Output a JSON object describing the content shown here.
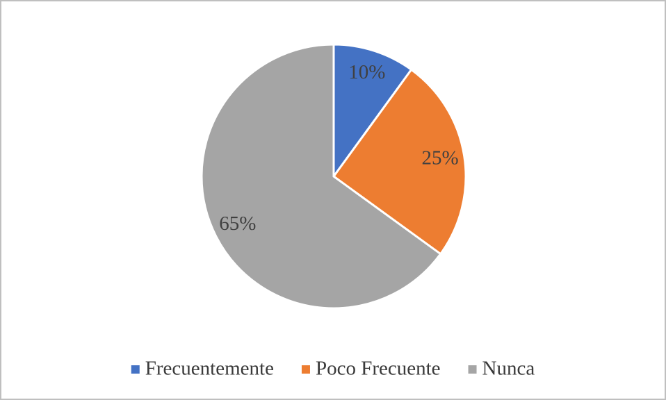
{
  "chart_data": {
    "type": "pie",
    "categories": [
      "Frecuentemente",
      "Poco Frecuente",
      "Nunca"
    ],
    "values": [
      10,
      25,
      65
    ],
    "value_labels": [
      "10%",
      "25%",
      "65%"
    ],
    "colors": [
      "#4472c4",
      "#ed7d31",
      "#a5a5a5"
    ]
  }
}
